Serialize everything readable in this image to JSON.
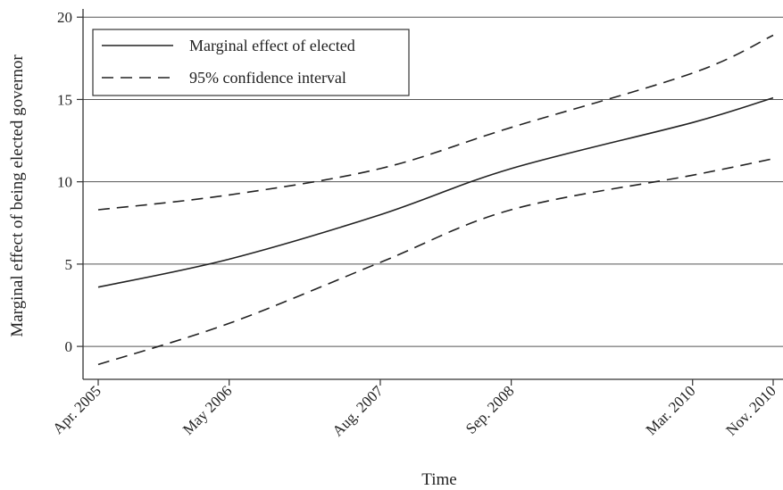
{
  "chart_data": {
    "type": "line",
    "title": "",
    "xlabel": "Time",
    "ylabel": "Marginal effect of being elected governor",
    "x_ticks": [
      "Apr. 2005",
      "May 2006",
      "Aug. 2007",
      "Sep. 2008",
      "Mar. 2010",
      "Nov. 2010"
    ],
    "x_tick_months": [
      0,
      13,
      28,
      41,
      59,
      67
    ],
    "ylim": [
      -2,
      20.5
    ],
    "y_ticks": [
      0,
      5,
      10,
      15,
      20
    ],
    "grid": "horizontal",
    "legend_position": "top-left",
    "series": [
      {
        "name": "Marginal effect of elected",
        "style": "solid",
        "x": [
          "Apr. 2005",
          "May 2006",
          "Aug. 2007",
          "Sep. 2008",
          "Mar. 2010",
          "Nov. 2010"
        ],
        "values": [
          3.6,
          5.3,
          8.0,
          10.8,
          13.6,
          15.1
        ]
      },
      {
        "name": "95% confidence interval",
        "style": "dashed",
        "x": [
          "Apr. 2005",
          "May 2006",
          "Aug. 2007",
          "Sep. 2008",
          "Mar. 2010",
          "Nov. 2010"
        ],
        "values": [
          8.3,
          9.2,
          10.8,
          13.3,
          16.6,
          18.9
        ]
      },
      {
        "name": "95% confidence interval",
        "style": "dashed",
        "x": [
          "Apr. 2005",
          "May 2006",
          "Aug. 2007",
          "Sep. 2008",
          "Mar. 2010",
          "Nov. 2010"
        ],
        "values": [
          -1.1,
          1.4,
          5.1,
          8.3,
          10.4,
          11.4
        ]
      }
    ]
  },
  "colors": {
    "line": "#222222",
    "grid": "#555555",
    "frame": "#333333"
  }
}
